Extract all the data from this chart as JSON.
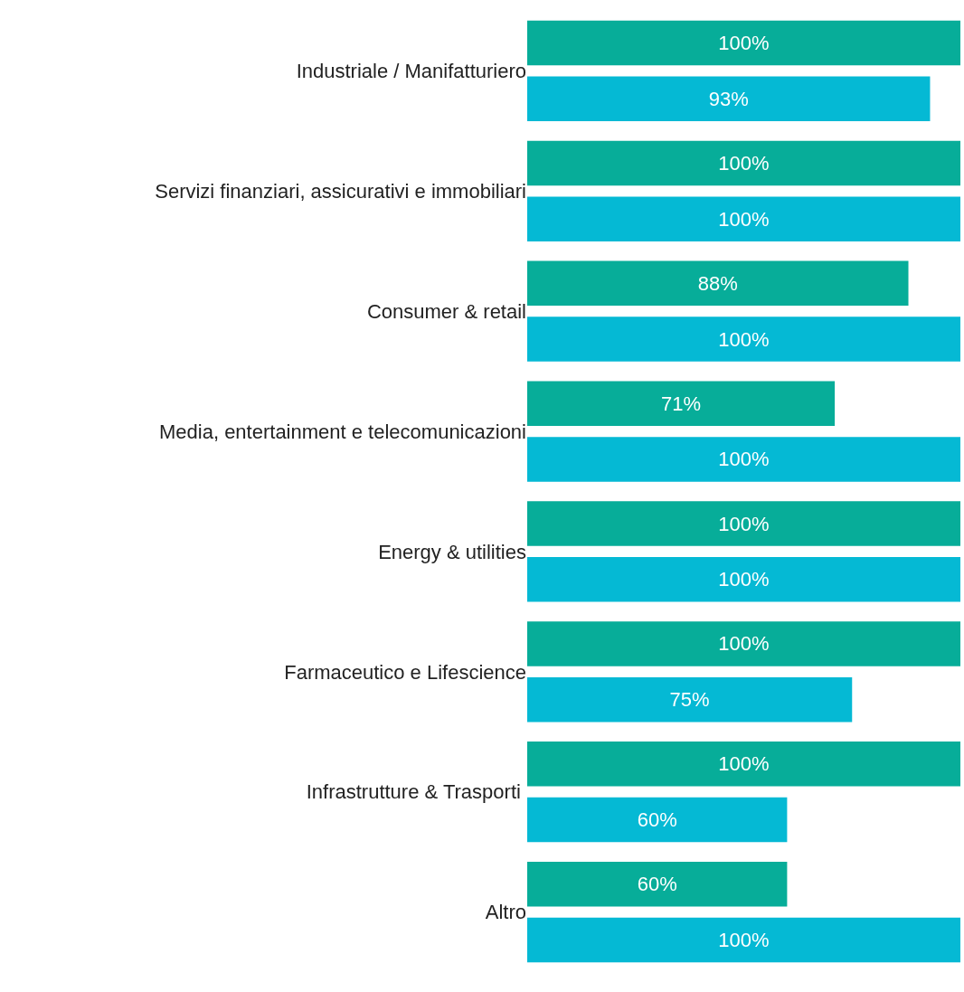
{
  "chart_data": {
    "type": "bar",
    "orientation": "horizontal",
    "categories": [
      "Industriale / Manifatturiero",
      "Servizi finanziari, assicurativi e immobiliari",
      "Consumer & retail",
      "Media, entertainment e telecomunicazioni",
      "Energy & utilities",
      "Farmaceutico e Lifescience",
      "Infrastrutture & Trasporti ",
      "Altro"
    ],
    "series": [
      {
        "color": "#07ad99",
        "values": [
          100,
          100,
          88,
          71,
          100,
          100,
          100,
          60
        ],
        "value_labels": [
          "100%",
          "100%",
          "88%",
          "71%",
          "100%",
          "100%",
          "100%",
          "60%"
        ]
      },
      {
        "color": "#05b9d4",
        "values": [
          93,
          100,
          100,
          100,
          100,
          75,
          60,
          100
        ],
        "value_labels": [
          "93%",
          "100%",
          "100%",
          "100%",
          "100%",
          "75%",
          "60%",
          "100%"
        ]
      }
    ],
    "xlim": [
      0,
      100
    ],
    "tick_labels": "y"
  }
}
